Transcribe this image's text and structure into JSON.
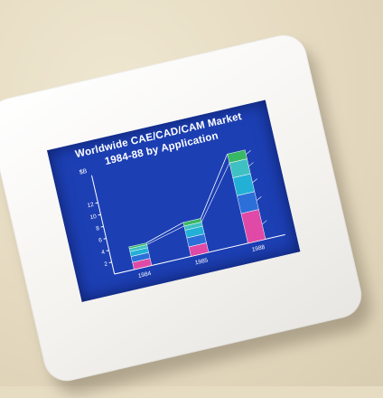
{
  "slide": {
    "title_line1": "Worldwide CAE/CAD/CAM Market",
    "title_line2": "1984-88 by Application"
  },
  "chart_data": {
    "type": "bar",
    "stacked": true,
    "ylabel": "$B",
    "y_ticks": [
      "2",
      "4",
      "6",
      "8",
      "10",
      "12"
    ],
    "categories": [
      "1984",
      "1985",
      "1988"
    ],
    "category_labels": [
      "1984",
      "1985",
      "1988"
    ],
    "series": [
      {
        "values": [
          1.2,
          1.6,
          5.0
        ],
        "color": "#e04aa6"
      },
      {
        "values": [
          1.0,
          1.5,
          3.0
        ],
        "color": "#2c6fd8"
      },
      {
        "values": [
          0.8,
          1.3,
          3.0
        ],
        "color": "#22b0d6"
      },
      {
        "values": [
          0.5,
          0.7,
          2.5
        ],
        "color": "#3fc0c2"
      },
      {
        "values": [
          0.3,
          0.6,
          1.5
        ],
        "color": "#38b864"
      }
    ],
    "ylim": [
      0,
      16
    ]
  },
  "colors": {
    "screen": "#1c3fb4",
    "mount": "#f6f5f2",
    "background": "#e6dcc2"
  }
}
